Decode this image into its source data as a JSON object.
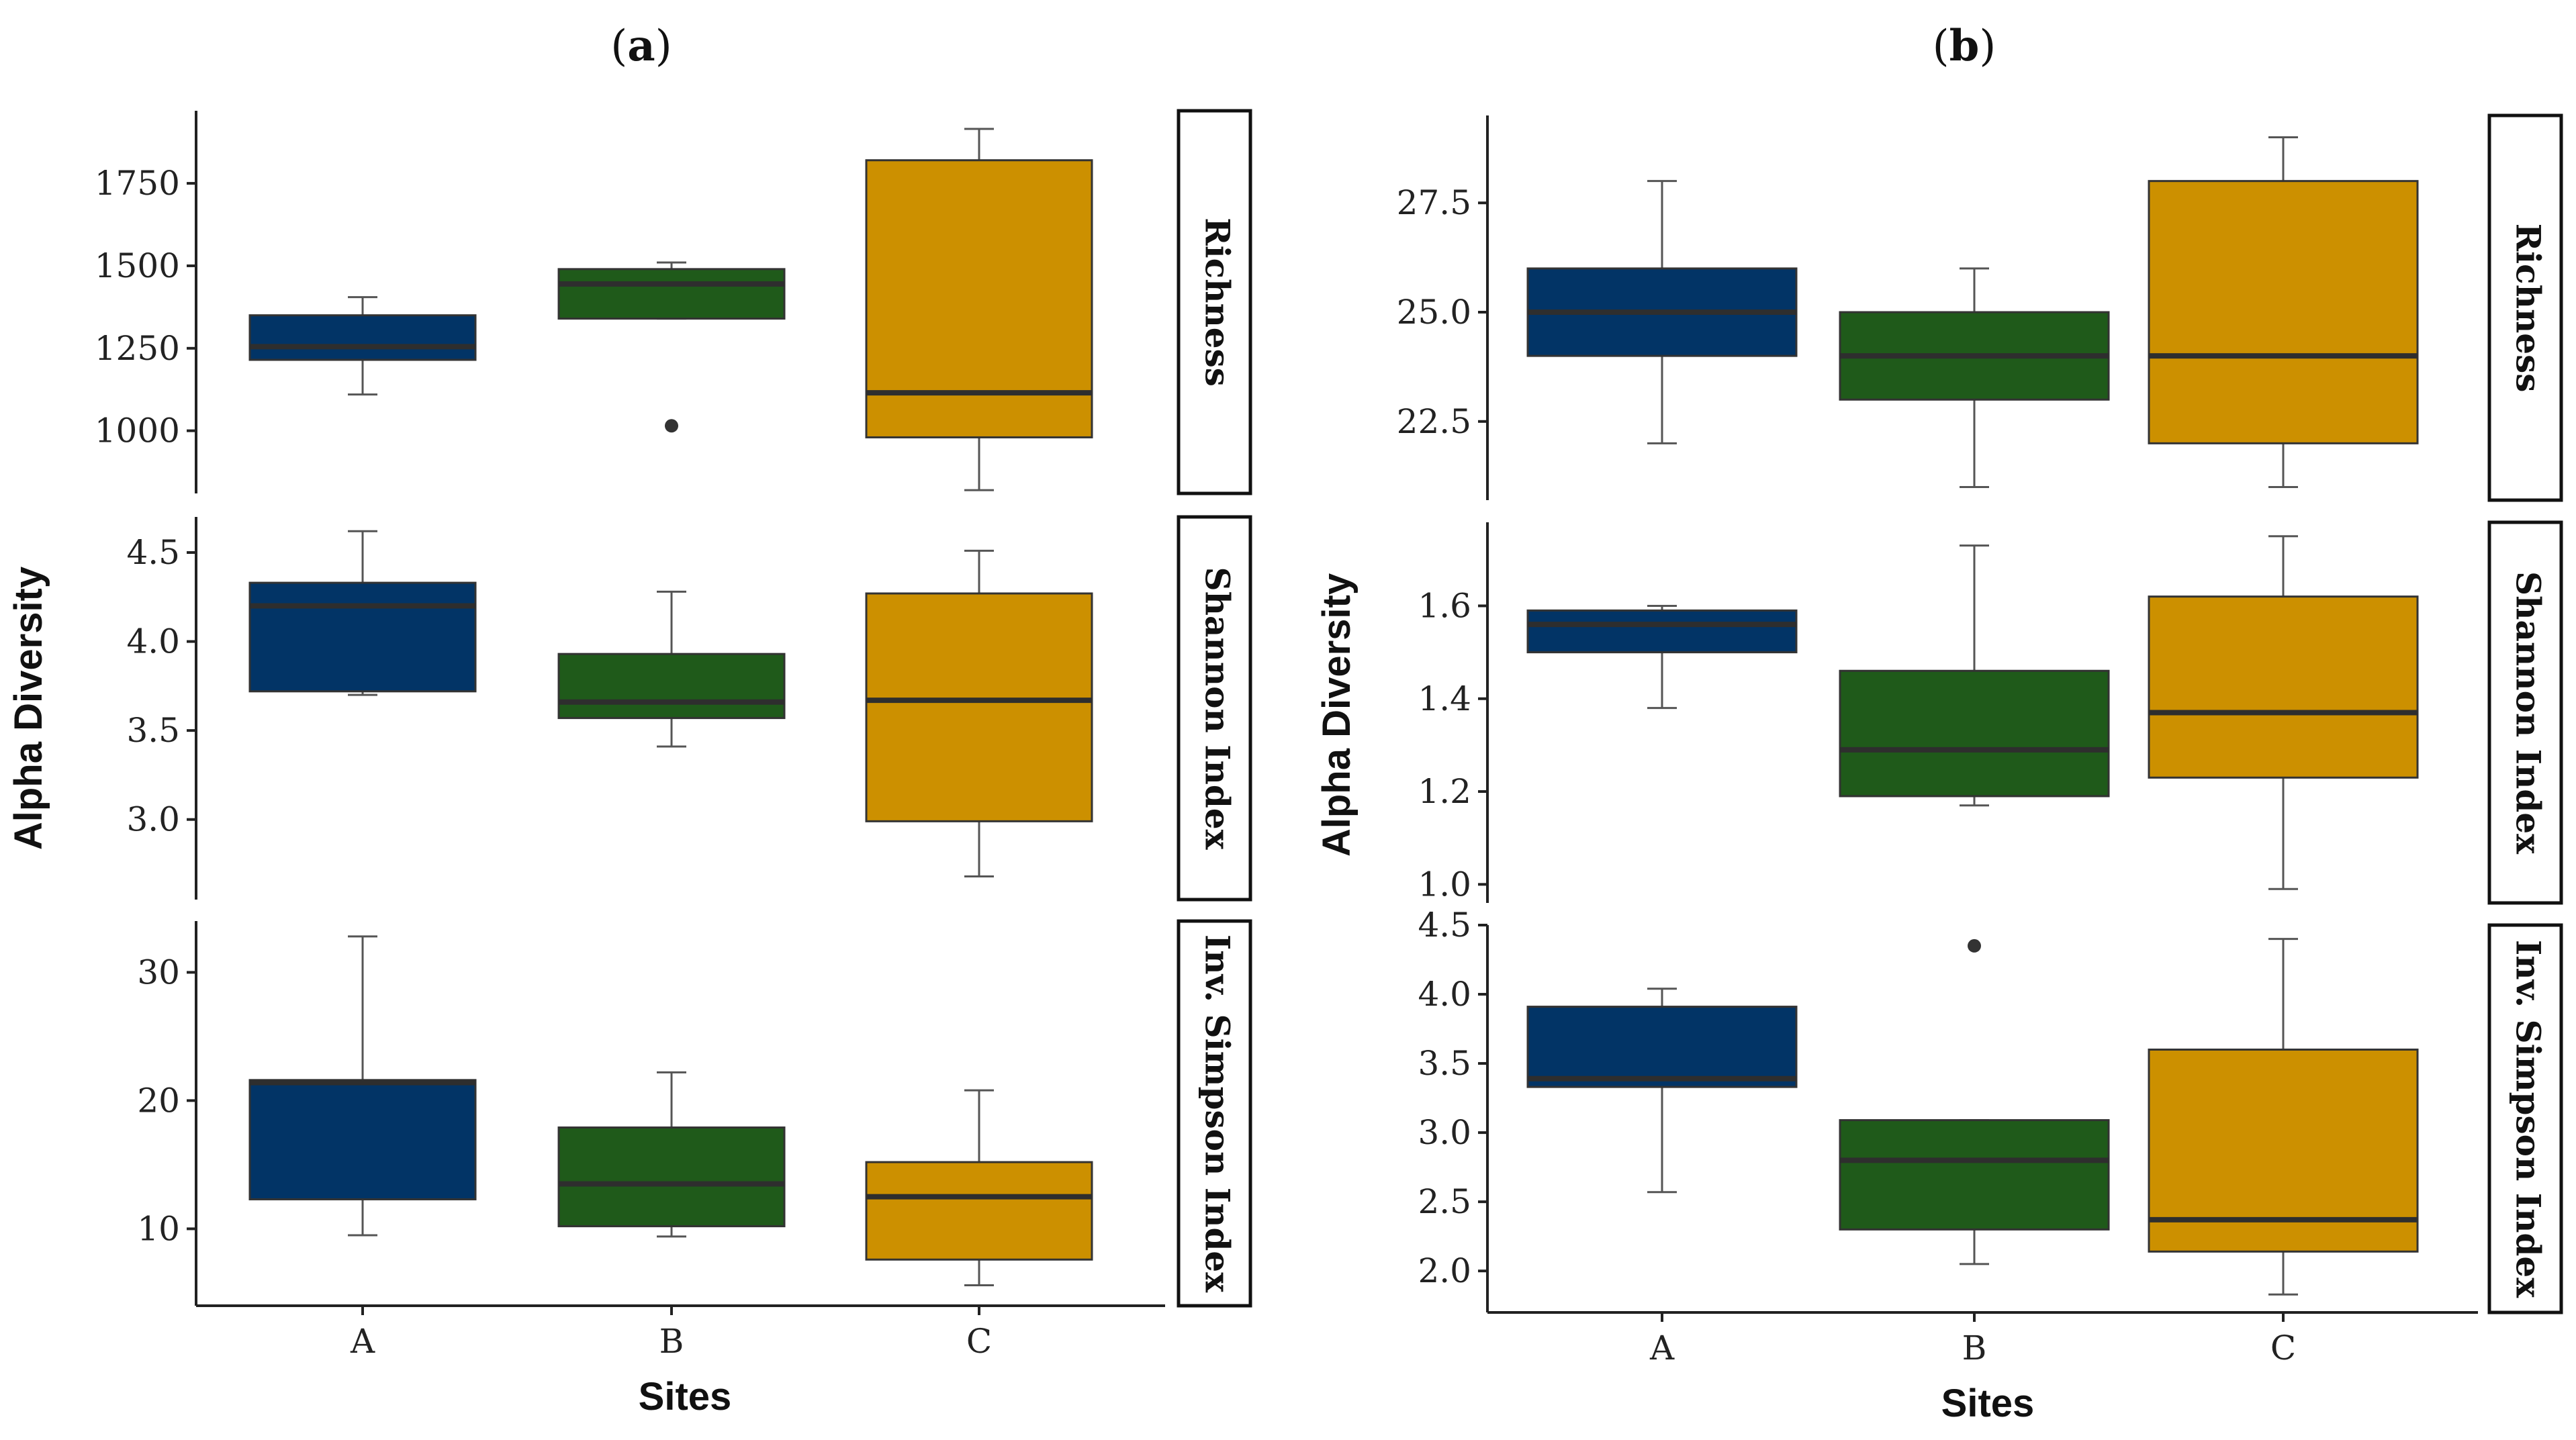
{
  "colors": {
    "A": "#023466",
    "B": "#1f5a1a",
    "C": "#cc9000",
    "median": "#2e2e2e",
    "whisker": "#555555",
    "outlier": "#333333"
  },
  "chart_data": [
    {
      "id": "a",
      "type": "boxplot",
      "panel_label": {
        "open": "(",
        "letter": "a",
        "close": ")"
      },
      "xlabel": "Sites",
      "ylabel": "Alpha Diversity",
      "categories": [
        "A",
        "B",
        "C"
      ],
      "facets": [
        {
          "strip": "Richness",
          "ylim": [
            810,
            1970
          ],
          "ticks": [
            1000,
            1250,
            1500,
            1750
          ],
          "tick_labels": [
            "1000",
            "1250",
            "1500",
            "1750"
          ],
          "boxes": [
            {
              "site": "A",
              "lower": 1110,
              "q1": 1215,
              "median": 1255,
              "q3": 1350,
              "upper": 1405,
              "outliers": []
            },
            {
              "site": "B",
              "lower": 1340,
              "q1": 1340,
              "median": 1445,
              "q3": 1490,
              "upper": 1510,
              "outliers": [
                1015
              ]
            },
            {
              "site": "C",
              "lower": 820,
              "q1": 980,
              "median": 1115,
              "q3": 1820,
              "upper": 1915,
              "outliers": []
            }
          ]
        },
        {
          "strip": "Shannon Index",
          "ylim": [
            2.55,
            4.7
          ],
          "ticks": [
            3.0,
            3.5,
            4.0,
            4.5
          ],
          "tick_labels": [
            "3.0",
            "3.5",
            "4.0",
            "4.5"
          ],
          "boxes": [
            {
              "site": "A",
              "lower": 3.7,
              "q1": 3.72,
              "median": 4.2,
              "q3": 4.33,
              "upper": 4.62,
              "outliers": []
            },
            {
              "site": "B",
              "lower": 3.41,
              "q1": 3.57,
              "median": 3.66,
              "q3": 3.93,
              "upper": 4.28,
              "outliers": []
            },
            {
              "site": "C",
              "lower": 2.68,
              "q1": 2.99,
              "median": 3.67,
              "q3": 4.27,
              "upper": 4.51,
              "outliers": []
            }
          ]
        },
        {
          "strip": "Inv. Simpson Index",
          "ylim": [
            4,
            34
          ],
          "ticks": [
            10,
            20,
            30
          ],
          "tick_labels": [
            "10",
            "20",
            "30"
          ],
          "boxes": [
            {
              "site": "A",
              "lower": 9.5,
              "q1": 12.3,
              "median": 21.4,
              "q3": 21.6,
              "upper": 32.8,
              "outliers": []
            },
            {
              "site": "B",
              "lower": 9.4,
              "q1": 10.2,
              "median": 13.5,
              "q3": 17.9,
              "upper": 22.2,
              "outliers": []
            },
            {
              "site": "C",
              "lower": 5.6,
              "q1": 7.6,
              "median": 12.5,
              "q3": 15.2,
              "upper": 20.8,
              "outliers": []
            }
          ]
        }
      ]
    },
    {
      "id": "b",
      "type": "boxplot",
      "panel_label": {
        "open": "(",
        "letter": "b",
        "close": ")"
      },
      "xlabel": "Sites",
      "ylabel": "Alpha Diversity",
      "categories": [
        "A",
        "B",
        "C"
      ],
      "facets": [
        {
          "strip": "Richness",
          "ylim": [
            20.7,
            29.5
          ],
          "ticks": [
            22.5,
            25.0,
            27.5
          ],
          "tick_labels": [
            "22.5",
            "25.0",
            "27.5"
          ],
          "boxes": [
            {
              "site": "A",
              "lower": 22,
              "q1": 24,
              "median": 25,
              "q3": 26,
              "upper": 28,
              "outliers": []
            },
            {
              "site": "B",
              "lower": 21,
              "q1": 23,
              "median": 24,
              "q3": 25,
              "upper": 26,
              "outliers": []
            },
            {
              "site": "C",
              "lower": 21,
              "q1": 22,
              "median": 24,
              "q3": 28,
              "upper": 29,
              "outliers": []
            }
          ]
        },
        {
          "strip": "Shannon Index",
          "ylim": [
            0.96,
            1.78
          ],
          "ticks": [
            1.0,
            1.2,
            1.4,
            1.6
          ],
          "tick_labels": [
            "1.0",
            "1.2",
            "1.4",
            "1.6"
          ],
          "boxes": [
            {
              "site": "A",
              "lower": 1.38,
              "q1": 1.5,
              "median": 1.56,
              "q3": 1.59,
              "upper": 1.6,
              "outliers": []
            },
            {
              "site": "B",
              "lower": 1.17,
              "q1": 1.19,
              "median": 1.29,
              "q3": 1.46,
              "upper": 1.73,
              "outliers": []
            },
            {
              "site": "C",
              "lower": 0.99,
              "q1": 1.23,
              "median": 1.37,
              "q3": 1.62,
              "upper": 1.75,
              "outliers": []
            }
          ]
        },
        {
          "strip": "Inv. Simpson Index",
          "ylim": [
            1.7,
            4.5
          ],
          "ticks": [
            2.0,
            2.5,
            3.0,
            3.5,
            4.0,
            4.5
          ],
          "tick_labels": [
            "2.0",
            "2.5",
            "3.0",
            "3.5",
            "4.0",
            "4.5"
          ],
          "boxes": [
            {
              "site": "A",
              "lower": 2.57,
              "q1": 3.33,
              "median": 3.39,
              "q3": 3.91,
              "upper": 4.04,
              "outliers": []
            },
            {
              "site": "B",
              "lower": 2.05,
              "q1": 2.3,
              "median": 2.8,
              "q3": 3.09,
              "upper": 3.09,
              "outliers": [
                4.35
              ]
            },
            {
              "site": "C",
              "lower": 1.83,
              "q1": 2.14,
              "median": 2.37,
              "q3": 3.6,
              "upper": 4.4,
              "outliers": []
            }
          ]
        }
      ]
    }
  ]
}
